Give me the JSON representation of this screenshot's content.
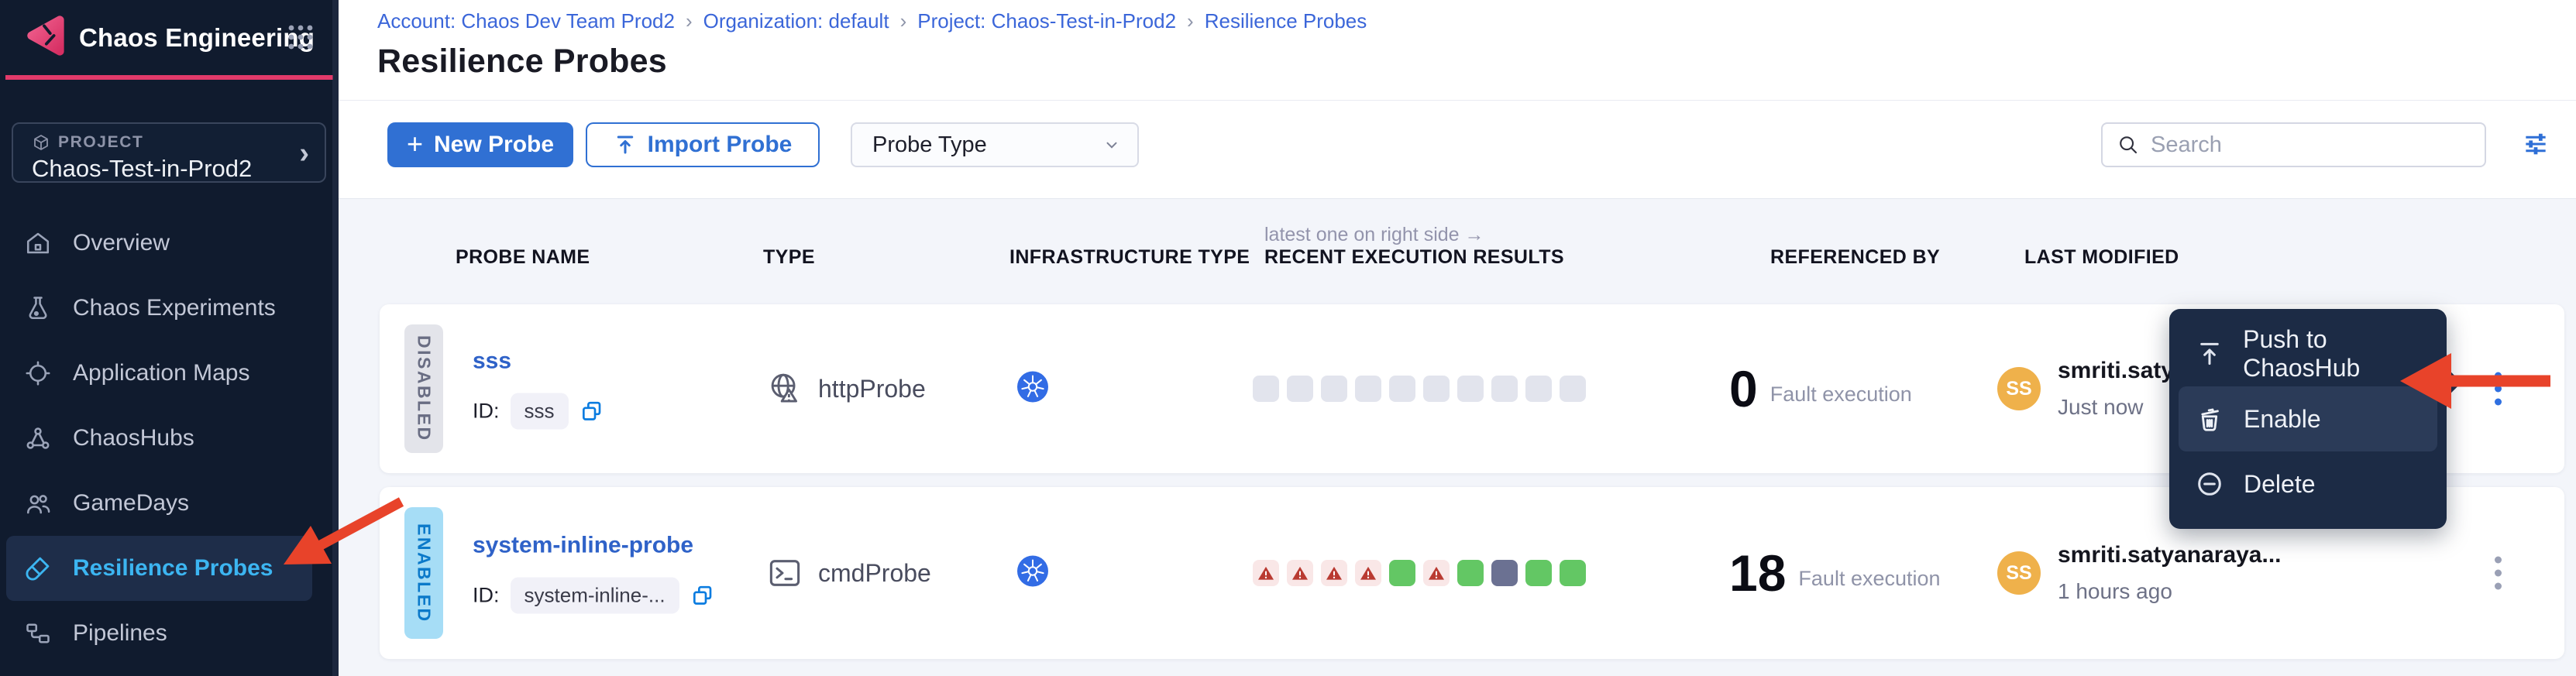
{
  "sidebar": {
    "app_title": "Chaos Engineering",
    "project_label": "PROJECT",
    "project_name": "Chaos-Test-in-Prod2",
    "items": [
      {
        "label": "Overview",
        "active": false
      },
      {
        "label": "Chaos Experiments",
        "active": false
      },
      {
        "label": "Application Maps",
        "active": false
      },
      {
        "label": "ChaosHubs",
        "active": false
      },
      {
        "label": "GameDays",
        "active": false
      },
      {
        "label": "Resilience Probes",
        "active": true
      },
      {
        "label": "Pipelines",
        "active": false
      }
    ]
  },
  "breadcrumb": {
    "separator": "›",
    "items": [
      "Account: Chaos Dev Team Prod2",
      "Organization: default",
      "Project: Chaos-Test-in-Prod2",
      "Resilience Probes"
    ]
  },
  "page": {
    "title": "Resilience Probes"
  },
  "toolbar": {
    "new_probe_plus": "+",
    "new_probe_label": "New Probe",
    "import_probe_label": "Import Probe",
    "probe_type_label": "Probe Type",
    "search_placeholder": "Search"
  },
  "table": {
    "note": "latest one on right side →",
    "headers": [
      "PROBE NAME",
      "TYPE",
      "INFRASTRUCTURE TYPE",
      "RECENT EXECUTION RESULTS",
      "REFERENCED BY",
      "LAST MODIFIED"
    ],
    "rows": [
      {
        "status": "DISABLED",
        "name": "sss",
        "id_label": "ID:",
        "id_value": "sss",
        "type": "httpProbe",
        "type_icon": "globe-probe-icon",
        "infra_icon": "kubernetes-icon",
        "executions": [
          "empty",
          "empty",
          "empty",
          "empty",
          "empty",
          "empty",
          "empty",
          "empty",
          "empty",
          "empty"
        ],
        "referenced_count": "0",
        "referenced_label": "Fault execution",
        "avatar_initials": "SS",
        "modified_by": "smriti.satyanaraya...",
        "modified_time": "Just now"
      },
      {
        "status": "ENABLED",
        "name": "system-inline-probe",
        "id_label": "ID:",
        "id_value": "system-inline-...",
        "type": "cmdProbe",
        "type_icon": "terminal-probe-icon",
        "infra_icon": "kubernetes-icon",
        "executions": [
          "fail",
          "fail",
          "fail",
          "fail",
          "pass",
          "fail",
          "pass",
          "na",
          "pass",
          "pass"
        ],
        "referenced_count": "18",
        "referenced_label": "Fault execution",
        "avatar_initials": "SS",
        "modified_by": "smriti.satyanaraya...",
        "modified_time": "1 hours ago"
      }
    ]
  },
  "context_menu": {
    "items": [
      {
        "label": "Push to ChaosHub",
        "icon": "push-upload-icon",
        "highlighted": false
      },
      {
        "label": "Enable",
        "icon": "trash-icon",
        "highlighted": true
      },
      {
        "label": "Delete",
        "icon": "minus-circle-icon",
        "highlighted": false
      }
    ]
  },
  "icons": {
    "chaos-logo-icon": "pink rounded triangle",
    "module-grid-icon": "3x3 dot grid",
    "cube-icon": "project cube outline",
    "chevron-right-icon": "›",
    "home-icon": "overview",
    "flask-icon": "chaos experiments",
    "crosshair-icon": "application maps",
    "network-icon": "chaoshubs",
    "people-icon": "gamedays",
    "test-tube-icon": "resilience probes",
    "pipelines-icon": "pipelines",
    "search-icon": "magnifier",
    "filter-icon": "sliders",
    "upload-icon": "arrow up to bar",
    "globe-probe-icon": "globe with warning triangle",
    "terminal-probe-icon": ">_ terminal box",
    "kubernetes-icon": "blue helm wheel",
    "copy-icon": "two stacked squares",
    "kebab-icon": "vertical three dots",
    "warning-triangle-icon": "red triangle with !",
    "annotation-arrow": "red arrow"
  },
  "colors": {
    "brand_pink": "#e23a6a",
    "primary_blue": "#3070d3",
    "link_blue": "#3b66d9",
    "probe_name_blue": "#2f62c8",
    "nav_active_blue": "#3cb5f1",
    "kubernetes_blue": "#326ce5",
    "pass_green": "#63c764",
    "na_slate": "#6b7192",
    "fail_red": "#b93a31",
    "fail_bg": "#f9e7e7",
    "enabled_bg": "#a6ddf6",
    "enabled_text": "#0b79c9",
    "arrow_red": "#e8432a",
    "sidebar_bg": "#101b2e",
    "menu_bg": "#1c2b45",
    "avatar_orange": "#efb14b"
  }
}
